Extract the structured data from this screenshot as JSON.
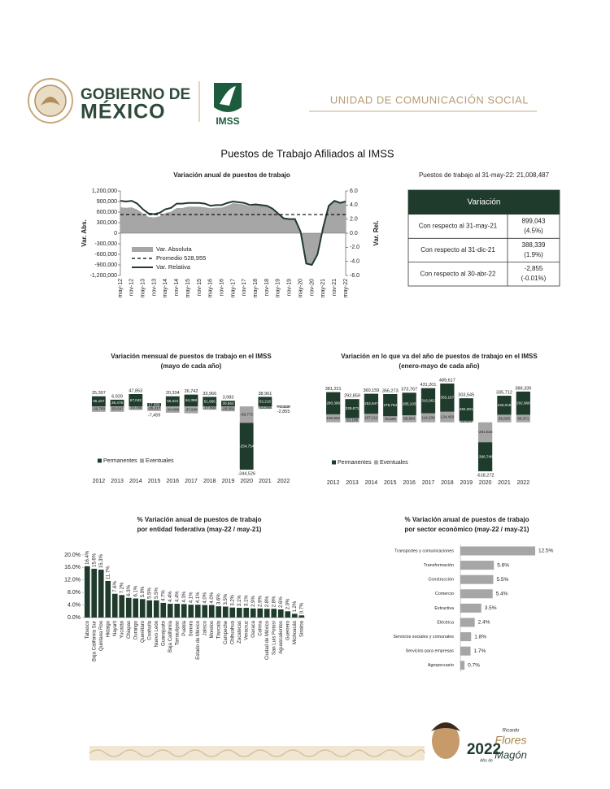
{
  "header": {
    "brand_line1": "GOBIERNO DE",
    "brand_line2": "MÉXICO",
    "institution": "IMSS",
    "unit": "UNIDAD DE COMUNICACIÓN SOCIAL"
  },
  "title": "Puestos de Trabajo Afiliados al IMSS",
  "summary": "Puestos de trabajo al 31-may-22: 21,008,487",
  "table": {
    "header": "Variación",
    "rows": [
      [
        "Con respecto al 31-may-21",
        "899,043",
        "(4.5%)"
      ],
      [
        "Con respecto al 31-dic-21",
        "388,339",
        "(1.9%)"
      ],
      [
        "Con respecto al 30-abr-22",
        "-2,855",
        "(-0.01%)"
      ]
    ]
  },
  "chart_data": [
    {
      "type": "combo",
      "title": "Variación anual de puestos de trabajo",
      "ylabel": "Var. Abs.",
      "y2label": "Var. Rel.",
      "legend": "lower left",
      "categories": [
        "may-12",
        null,
        "nov-12",
        null,
        "may-13",
        null,
        "nov-13",
        null,
        "may-14",
        null,
        "nov-14",
        null,
        "may-15",
        null,
        "nov-15",
        null,
        "may-16",
        null,
        "nov-16",
        null,
        "may-17",
        null,
        "nov-17",
        null,
        "may-18",
        null,
        "nov-18",
        null,
        "may-19",
        null,
        "nov-19",
        null,
        "may-20",
        null,
        "nov-20",
        null,
        "may-21",
        null,
        "nov-21",
        null,
        "may-22"
      ],
      "series": [
        {
          "name": "Var. Absoluta",
          "style": "area",
          "color": "#a6a6a6",
          "values": [
            736000,
            720000,
            736000,
            672000,
            561000,
            462000,
            446000,
            479000,
            578000,
            612000,
            714000,
            714000,
            753000,
            753000,
            753000,
            735000,
            710000,
            728000,
            728000,
            783000,
            855000,
            836000,
            817000,
            760000,
            812000,
            792000,
            772000,
            693000,
            568000,
            426000,
            406000,
            406000,
            41000,
            -882000,
            -923000,
            -615000,
            158000,
            768000,
            906000,
            847000,
            899043
          ]
        },
        {
          "name": "Var. Relativa",
          "style": "line",
          "axis": "y2",
          "color": "#1f3b2c",
          "values": [
            4.6,
            4.5,
            4.6,
            4.2,
            3.4,
            2.8,
            2.7,
            2.9,
            3.4,
            3.6,
            4.2,
            4.2,
            4.3,
            4.3,
            4.3,
            4.2,
            3.9,
            4.0,
            4.0,
            4.3,
            4.5,
            4.4,
            4.3,
            4.0,
            4.1,
            4.0,
            3.9,
            3.5,
            2.8,
            2.1,
            2.0,
            2.0,
            0.2,
            -4.3,
            -4.5,
            -3.0,
            0.8,
            3.9,
            4.6,
            4.3,
            4.5
          ]
        }
      ],
      "reference": {
        "name": "Promedio 528,955",
        "value": 528955,
        "color": "#000000",
        "dashed": true
      },
      "ylim": [
        -1200000,
        1200000
      ],
      "yticks": [
        {
          "value": -1200000,
          "label": "-1,200,000"
        },
        {
          "value": -900000,
          "label": "-900,000"
        },
        {
          "value": -600000,
          "label": "-600,000"
        },
        {
          "value": -300000,
          "label": "-300,000"
        },
        0,
        {
          "value": 300000,
          "label": "300,000"
        },
        {
          "value": 600000,
          "label": "600,000"
        },
        {
          "value": 900000,
          "label": "900,000"
        },
        {
          "value": 1200000,
          "label": "1,200,000"
        }
      ],
      "y2lim": [
        -6,
        6
      ],
      "y2ticks": [
        {
          "value": -6,
          "label": "-6.0"
        },
        {
          "value": -4,
          "label": "-4.0"
        },
        {
          "value": -2,
          "label": "-2.0"
        },
        {
          "value": 0,
          "label": "0.0"
        },
        {
          "value": 2,
          "label": "2.0"
        },
        {
          "value": 4,
          "label": "4.0"
        },
        {
          "value": 6,
          "label": "6.0"
        }
      ]
    },
    {
      "type": "bar",
      "stacked": true,
      "legend": "lower left",
      "title": "Variación mensual de puestos de trabajo en el IMSS",
      "subtitle": "(mayo de cada año)",
      "categories": [
        "2012",
        "2013",
        "2014",
        "2015",
        "2016",
        "2017",
        "2018",
        "2019",
        "2020",
        "2021",
        "2022"
      ],
      "series": [
        {
          "name": "Permanentes",
          "color": "#1f3b2c",
          "values": [
            55157,
            36476,
            67042,
            17958,
            55022,
            64388,
            51956,
            30664,
            -254754,
            52216,
            3530
          ],
          "value_labels": [
            "55,157",
            "36,476",
            "67,042",
            "17,958",
            "55,022",
            "64,388",
            "51,956",
            "30,664",
            "-254,754",
            "52,216",
            "3,530"
          ]
        },
        {
          "name": "Eventuales",
          "color": "#a6a6a6",
          "values": [
            -29760,
            -29547,
            -19189,
            -25417,
            -34688,
            -37646,
            -17990,
            -26681,
            -89772,
            -13255,
            -6385
          ],
          "value_labels": [
            "-29,760",
            "-29,547",
            "-19,189",
            "-25,417",
            "-34,688",
            "-37,646",
            "-17,990",
            "-26,681",
            "-89,772",
            "-13,255",
            "-6,385"
          ]
        }
      ],
      "totals": [
        25397,
        6929,
        47853,
        -7459,
        20334,
        26742,
        33966,
        3983,
        -344526,
        38961,
        -2855
      ],
      "total_labels": [
        "25,397",
        "6,929",
        "47,853",
        "-7,459",
        "20,334",
        "26,742",
        "33,966",
        "3,983",
        "-344,526",
        "38,961",
        "-2,855"
      ]
    },
    {
      "type": "bar",
      "stacked": true,
      "legend": "lower left",
      "title": "Variación en lo que va del año de puestos de trabajo en el IMSS",
      "subtitle": "(enero-mayo de cada año)",
      "categories": [
        "2012",
        "2013",
        "2014",
        "2015",
        "2016",
        "2017",
        "2018",
        "2019",
        "2020",
        "2021",
        "2022"
      ],
      "series": [
        {
          "name": "Permanentes",
          "color": "#1f3b2c",
          "values": [
            280399,
            239671,
            252947,
            279764,
            285103,
            316962,
            355167,
            284001,
            -366748,
            240019,
            292968
          ],
          "value_labels": [
            "280,399",
            "239,671",
            "252,947",
            "279,764",
            "285,103",
            "316,962",
            "355,167",
            "284,001",
            "-366,748",
            "240,019",
            "292,968"
          ]
        },
        {
          "name": "Eventuales",
          "color": "#a6a6a6",
          "values": [
            100822,
            53188,
            107212,
            76509,
            88664,
            114239,
            134450,
            19544,
            -251524,
            95693,
            95371
          ],
          "value_labels": [
            "100,822",
            "53,188",
            "107,212",
            "76,509",
            "88,664",
            "114,239",
            "134,450",
            "19,544",
            "-251,524",
            "95,693",
            "95,371"
          ]
        }
      ],
      "totals": [
        381221,
        292859,
        360159,
        356273,
        373767,
        431201,
        489617,
        303545,
        -618272,
        335712,
        388339
      ],
      "total_labels": [
        "381,221",
        "292,859",
        "360,159",
        "356,273",
        "373,767",
        "431,201",
        "489,617",
        "303,545",
        "-618,272",
        "335,712",
        "388,339"
      ]
    },
    {
      "type": "bar",
      "title": "% Variación anual de puestos de trabajo",
      "subtitle": "por entidad federativa (may-22 / may-21)",
      "color": "#1f3b2c",
      "categories": [
        "Tabasco",
        "Baja California Sur",
        "Quintana Roo",
        "Hidalgo",
        "Nayarit",
        "Yucatán",
        "Chiapas",
        "Durango",
        "Querétaro",
        "Coahuila",
        "Nuevo León",
        "Guanajuato",
        "Baja California",
        "Tamaulipas",
        "Puebla",
        "Sonora",
        "Estado de México",
        "Jalisco",
        "Morelos",
        "Tlaxcala",
        "Campeche",
        "Chihuahua",
        "Zacatecas",
        "Veracruz",
        "Oaxaca",
        "Colima",
        "Ciudad de México",
        "San Luis Potosí",
        "Aguascalientes",
        "Guerrero",
        "Michoacán",
        "Sinaloa"
      ],
      "values": [
        16.4,
        15.6,
        15.3,
        11.7,
        7.6,
        7.2,
        6.3,
        6.1,
        5.9,
        5.5,
        5.5,
        4.7,
        4.4,
        4.4,
        4.3,
        4.1,
        4.1,
        4.0,
        4.0,
        3.6,
        3.5,
        3.2,
        3.1,
        3.1,
        2.9,
        2.9,
        2.8,
        2.8,
        2.6,
        2.0,
        1.2,
        0.7
      ],
      "value_labels": [
        "16.4%",
        "15.6%",
        "15.3%",
        "11.7%",
        "7.6%",
        "7.2%",
        "6.3%",
        "6.1%",
        "5.9%",
        "5.5%",
        "5.5%",
        "4.7%",
        "4.4%",
        "4.4%",
        "4.3%",
        "4.1%",
        "4.1%",
        "4.0%",
        "4.0%",
        "3.6%",
        "3.5%",
        "3.2%",
        "3.1%",
        "3.1%",
        "2.9%",
        "2.9%",
        "2.8%",
        "2.8%",
        "2.6%",
        "2.0%",
        "1.2%",
        "0.7%"
      ],
      "ylim": [
        0,
        20
      ],
      "yticks": [
        {
          "value": 0,
          "label": "0.0%"
        },
        {
          "value": 4,
          "label": "4.0%"
        },
        {
          "value": 8,
          "label": "8.0%"
        },
        {
          "value": 12,
          "label": "12.0%"
        },
        {
          "value": 16,
          "label": "16.0%"
        },
        {
          "value": 20,
          "label": "20.0%"
        }
      ]
    },
    {
      "type": "bar",
      "orientation": "horizontal",
      "title": "% Variación anual de puestos de trabajo",
      "subtitle": "por sector económico (may-22 / may-21)",
      "color": "#a6a6a6",
      "categories": [
        "Transportes y comunicaciones",
        "Transformación",
        "Construcción",
        "Comercio",
        "Extractiva",
        "Eléctrica",
        "Servicios sociales y comunales",
        "Servicios para empresas",
        "Agropecuario"
      ],
      "values": [
        12.5,
        5.6,
        5.5,
        5.4,
        3.5,
        2.4,
        1.8,
        1.7,
        0.7
      ],
      "value_labels": [
        "12.5%",
        "5.6%",
        "5.5%",
        "5.4%",
        "3.5%",
        "2.4%",
        "1.8%",
        "1.7%",
        "0.7%"
      ]
    }
  ],
  "footer": {
    "year": "2022",
    "prefix": "Año de",
    "name_first": "Ricardo",
    "name_last1": "Flores",
    "name_last2": "Magón"
  }
}
